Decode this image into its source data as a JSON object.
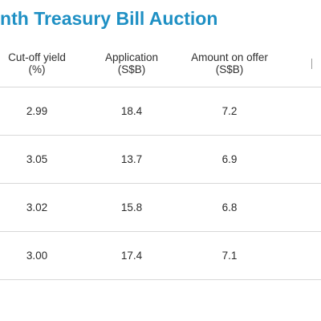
{
  "title": "onth Treasury Bill Auction",
  "columns": [
    {
      "line1": "Cut-off yield",
      "line2": "(%)"
    },
    {
      "line1": "Application",
      "line2": "(S$B)"
    },
    {
      "line1": "Amount on offer",
      "line2": "(S$B)"
    }
  ],
  "rows": [
    {
      "yield": "2.99",
      "application": "18.4",
      "offer": "7.2"
    },
    {
      "yield": "3.05",
      "application": "13.7",
      "offer": "6.9"
    },
    {
      "yield": "3.02",
      "application": "15.8",
      "offer": "6.8"
    },
    {
      "yield": "3.00",
      "application": "17.4",
      "offer": "7.1"
    }
  ],
  "colors": {
    "title": "#1f90c4",
    "divider": "#d8d8d8"
  }
}
